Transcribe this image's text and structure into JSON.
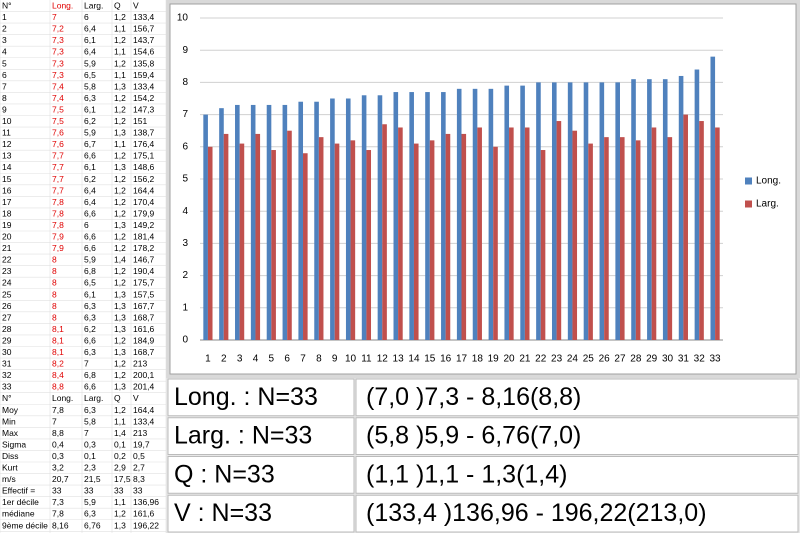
{
  "table": {
    "header": [
      "N°",
      "Long.",
      "Larg.",
      "Q",
      "V"
    ],
    "rows": [
      [
        "1",
        "7",
        "6",
        "1,2",
        "133,4"
      ],
      [
        "2",
        "7,2",
        "6,4",
        "1,1",
        "156,7"
      ],
      [
        "3",
        "7,3",
        "6,1",
        "1,2",
        "143,7"
      ],
      [
        "4",
        "7,3",
        "6,4",
        "1,1",
        "154,6"
      ],
      [
        "5",
        "7,3",
        "5,9",
        "1,2",
        "135,8"
      ],
      [
        "6",
        "7,3",
        "6,5",
        "1,1",
        "159,4"
      ],
      [
        "7",
        "7,4",
        "5,8",
        "1,3",
        "133,4"
      ],
      [
        "8",
        "7,4",
        "6,3",
        "1,2",
        "154,2"
      ],
      [
        "9",
        "7,5",
        "6,1",
        "1,2",
        "147,3"
      ],
      [
        "10",
        "7,5",
        "6,2",
        "1,2",
        "151"
      ],
      [
        "11",
        "7,6",
        "5,9",
        "1,3",
        "138,7"
      ],
      [
        "12",
        "7,6",
        "6,7",
        "1,1",
        "176,4"
      ],
      [
        "13",
        "7,7",
        "6,6",
        "1,2",
        "175,1"
      ],
      [
        "14",
        "7,7",
        "6,1",
        "1,3",
        "148,6"
      ],
      [
        "15",
        "7,7",
        "6,2",
        "1,2",
        "156,2"
      ],
      [
        "16",
        "7,7",
        "6,4",
        "1,2",
        "164,4"
      ],
      [
        "17",
        "7,8",
        "6,4",
        "1,2",
        "170,4"
      ],
      [
        "18",
        "7,8",
        "6,6",
        "1,2",
        "179,9"
      ],
      [
        "19",
        "7,8",
        "6",
        "1,3",
        "149,2"
      ],
      [
        "20",
        "7,9",
        "6,6",
        "1,2",
        "181,4"
      ],
      [
        "21",
        "7,9",
        "6,6",
        "1,2",
        "178,2"
      ],
      [
        "22",
        "8",
        "5,9",
        "1,4",
        "146,7"
      ],
      [
        "23",
        "8",
        "6,8",
        "1,2",
        "190,4"
      ],
      [
        "24",
        "8",
        "6,5",
        "1,2",
        "175,7"
      ],
      [
        "25",
        "8",
        "6,1",
        "1,3",
        "157,5"
      ],
      [
        "26",
        "8",
        "6,3",
        "1,3",
        "167,7"
      ],
      [
        "27",
        "8",
        "6,3",
        "1,3",
        "168,7"
      ],
      [
        "28",
        "8,1",
        "6,2",
        "1,3",
        "161,6"
      ],
      [
        "29",
        "8,1",
        "6,6",
        "1,2",
        "184,9"
      ],
      [
        "30",
        "8,1",
        "6,3",
        "1,3",
        "168,7"
      ],
      [
        "31",
        "8,2",
        "7",
        "1,2",
        "213"
      ],
      [
        "32",
        "8,4",
        "6,8",
        "1,2",
        "200,1"
      ],
      [
        "33",
        "8,8",
        "6,6",
        "1,3",
        "201,4"
      ]
    ]
  },
  "stats": {
    "header": [
      "N°",
      "Long.",
      "Larg.",
      "Q",
      "V"
    ],
    "rows": [
      [
        "Moy",
        "7,8",
        "6,3",
        "1,2",
        "164,4"
      ],
      [
        "Min",
        "7",
        "5,8",
        "1,1",
        "133,4"
      ],
      [
        "Max",
        "8,8",
        "7",
        "1,4",
        "213"
      ],
      [
        "Sigma",
        "0,4",
        "0,3",
        "0,1",
        "19,7"
      ],
      [
        "Diss",
        "0,3",
        "0,1",
        "0,2",
        "0,5"
      ],
      [
        "Kurt",
        "3,2",
        "2,3",
        "2,9",
        "2,7"
      ],
      [
        "m/s",
        "20,7",
        "21,5",
        "17,5",
        "8,3"
      ],
      [
        "Effectif =",
        "33",
        "33",
        "33",
        "33"
      ],
      [
        "1er décile",
        "7,3",
        "5,9",
        "1,1",
        "136,96"
      ],
      [
        "médiane",
        "7,8",
        "6,3",
        "1,2",
        "161,6"
      ],
      [
        "9ème décile",
        "8,16",
        "6,76",
        "1,3",
        "196,22"
      ]
    ]
  },
  "summary": {
    "rows": [
      [
        "Long. : N=33",
        "(7,0 )7,3 - 8,16(8,8)"
      ],
      [
        "Larg. : N=33",
        "(5,8 )5,9 - 6,76(7,0)"
      ],
      [
        "Q : N=33",
        "(1,1 )1,1 - 1,3(1,4)"
      ],
      [
        "V : N=33",
        "(133,4 )136,96 - 196,22(213,0)"
      ]
    ]
  },
  "chart_data": {
    "type": "bar",
    "categories": [
      1,
      2,
      3,
      4,
      5,
      6,
      7,
      8,
      9,
      10,
      11,
      12,
      13,
      14,
      15,
      16,
      17,
      18,
      19,
      20,
      21,
      22,
      23,
      24,
      25,
      26,
      27,
      28,
      29,
      30,
      31,
      32,
      33
    ],
    "series": [
      {
        "name": "Long.",
        "color": "#4f81bd",
        "values": [
          7,
          7.2,
          7.3,
          7.3,
          7.3,
          7.3,
          7.4,
          7.4,
          7.5,
          7.5,
          7.6,
          7.6,
          7.7,
          7.7,
          7.7,
          7.7,
          7.8,
          7.8,
          7.8,
          7.9,
          7.9,
          8,
          8,
          8,
          8,
          8,
          8,
          8.1,
          8.1,
          8.1,
          8.2,
          8.4,
          8.8
        ]
      },
      {
        "name": "Larg.",
        "color": "#c0504d",
        "values": [
          6,
          6.4,
          6.1,
          6.4,
          5.9,
          6.5,
          5.8,
          6.3,
          6.1,
          6.2,
          5.9,
          6.7,
          6.6,
          6.1,
          6.2,
          6.4,
          6.4,
          6.6,
          6,
          6.6,
          6.6,
          5.9,
          6.8,
          6.5,
          6.1,
          6.3,
          6.3,
          6.2,
          6.6,
          6.3,
          7,
          6.8,
          6.6
        ]
      }
    ],
    "ylim": [
      0,
      10
    ],
    "yticks": [
      0,
      1,
      2,
      3,
      4,
      5,
      6,
      7,
      8,
      9,
      10
    ],
    "grid": true,
    "legend": "right"
  }
}
